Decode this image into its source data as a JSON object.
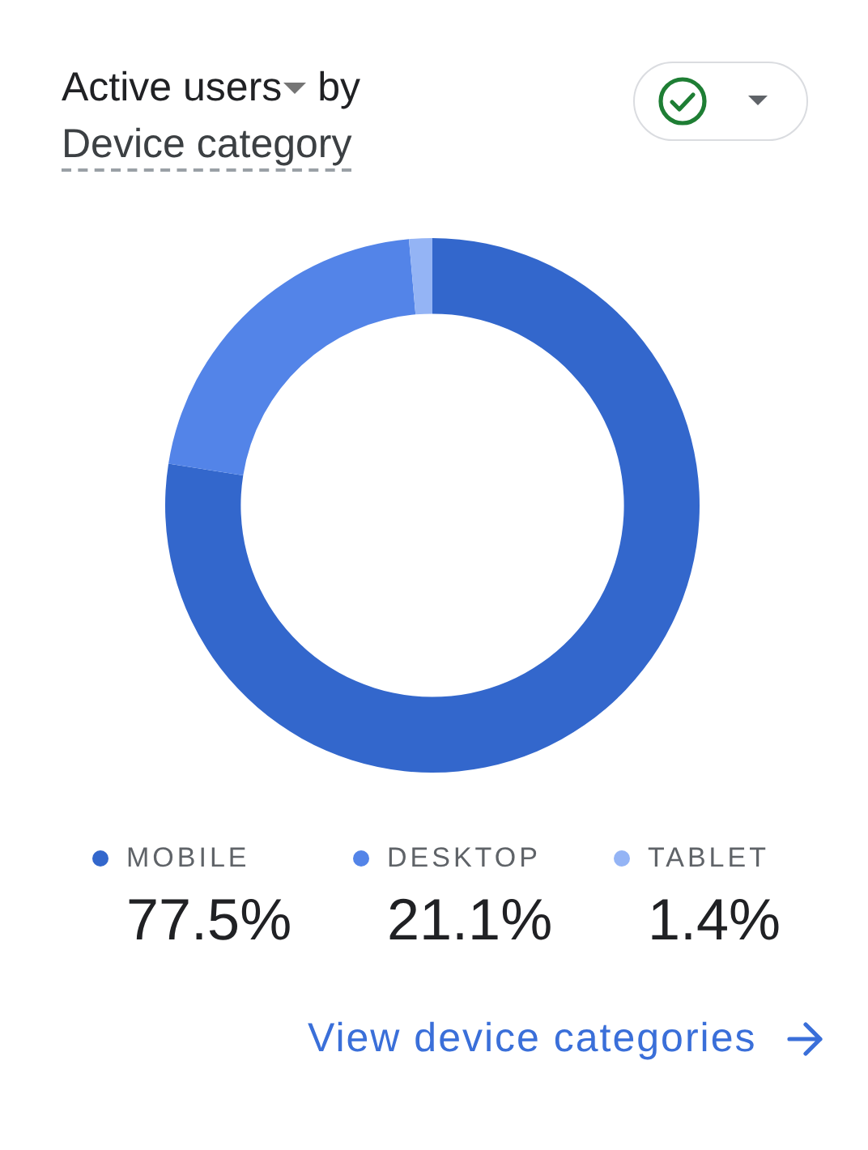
{
  "chart_data": {
    "type": "donut",
    "title": "Active users by Device category",
    "categories": [
      "MOBILE",
      "DESKTOP",
      "TABLET"
    ],
    "values": [
      77.5,
      21.1,
      1.4
    ],
    "colors": [
      "#3367cc",
      "#5384e8",
      "#94b4f5"
    ],
    "value_labels": [
      "77.5%",
      "21.1%",
      "1.4%"
    ],
    "legend": "bottom",
    "annotations": [
      "View device categories"
    ]
  }
}
